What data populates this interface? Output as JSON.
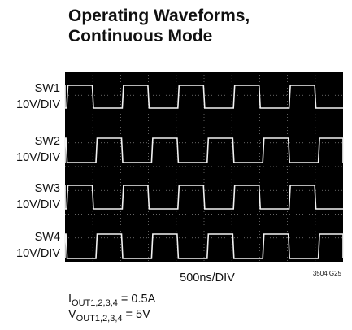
{
  "header": {
    "title_lines": [
      "Operating Waveforms,",
      "Continuous Mode"
    ]
  },
  "channels": [
    {
      "name": "SW1",
      "scale": "10V/DIV"
    },
    {
      "name": "SW2",
      "scale": "10V/DIV"
    },
    {
      "name": "SW3",
      "scale": "10V/DIV"
    },
    {
      "name": "SW4",
      "scale": "10V/DIV"
    }
  ],
  "time_scale": "500ns/DIV",
  "figure_id": "3504 G25",
  "conditions": [
    {
      "symbol": "I",
      "subscript": "OUT1,2,3,4",
      "value": " = 0.5A"
    },
    {
      "symbol": "V",
      "subscript": "OUT1,2,3,4",
      "value": " = 5V"
    }
  ]
}
